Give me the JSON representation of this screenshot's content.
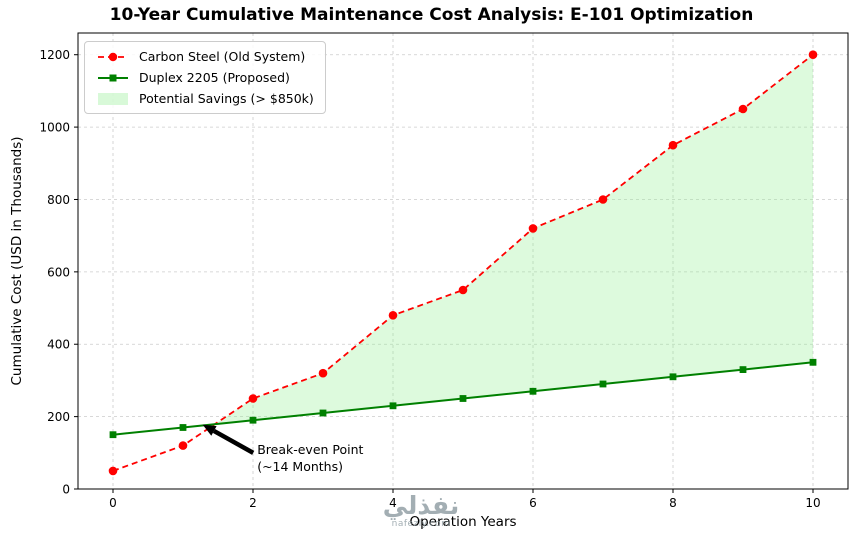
{
  "watermark": {
    "arabic": "نفذلي",
    "domain": "nafezly.com"
  },
  "chart_data": {
    "type": "line",
    "title": "10-Year Cumulative Maintenance Cost Analysis: E-101 Optimization",
    "xlabel": "Operation Years",
    "ylabel": "Cumulative Cost (USD in Thousands)",
    "x": [
      0,
      1,
      2,
      3,
      4,
      5,
      6,
      7,
      8,
      9,
      10
    ],
    "series": [
      {
        "name": "Carbon Steel (Old System)",
        "values": [
          50,
          120,
          250,
          320,
          480,
          550,
          720,
          800,
          950,
          1050,
          1200
        ],
        "color": "#ff0000",
        "line_style": "dashed",
        "dash": "6 4",
        "marker": "circle",
        "width": 1.8
      },
      {
        "name": "Duplex 2205 (Proposed)",
        "values": [
          150,
          170,
          190,
          210,
          230,
          250,
          270,
          290,
          310,
          330,
          350
        ],
        "color": "#008000",
        "line_style": "solid",
        "dash": "",
        "marker": "square",
        "width": 2
      }
    ],
    "fill": {
      "label": "Potential Savings (> $850k)",
      "color": "#90ee90",
      "opacity": 0.3
    },
    "annotation": {
      "line1": "Break-even Point",
      "line2": "(~14 Months)",
      "xy": [
        1.28,
        178
      ],
      "text_xy": [
        2.06,
        133
      ]
    },
    "xlim": [
      -0.5,
      10.5
    ],
    "ylim": [
      0,
      1260
    ],
    "xticks": [
      0,
      2,
      4,
      6,
      8,
      10
    ],
    "yticks": [
      0,
      200,
      400,
      600,
      800,
      1000,
      1200
    ],
    "grid": true,
    "legend_position": "upper left"
  }
}
